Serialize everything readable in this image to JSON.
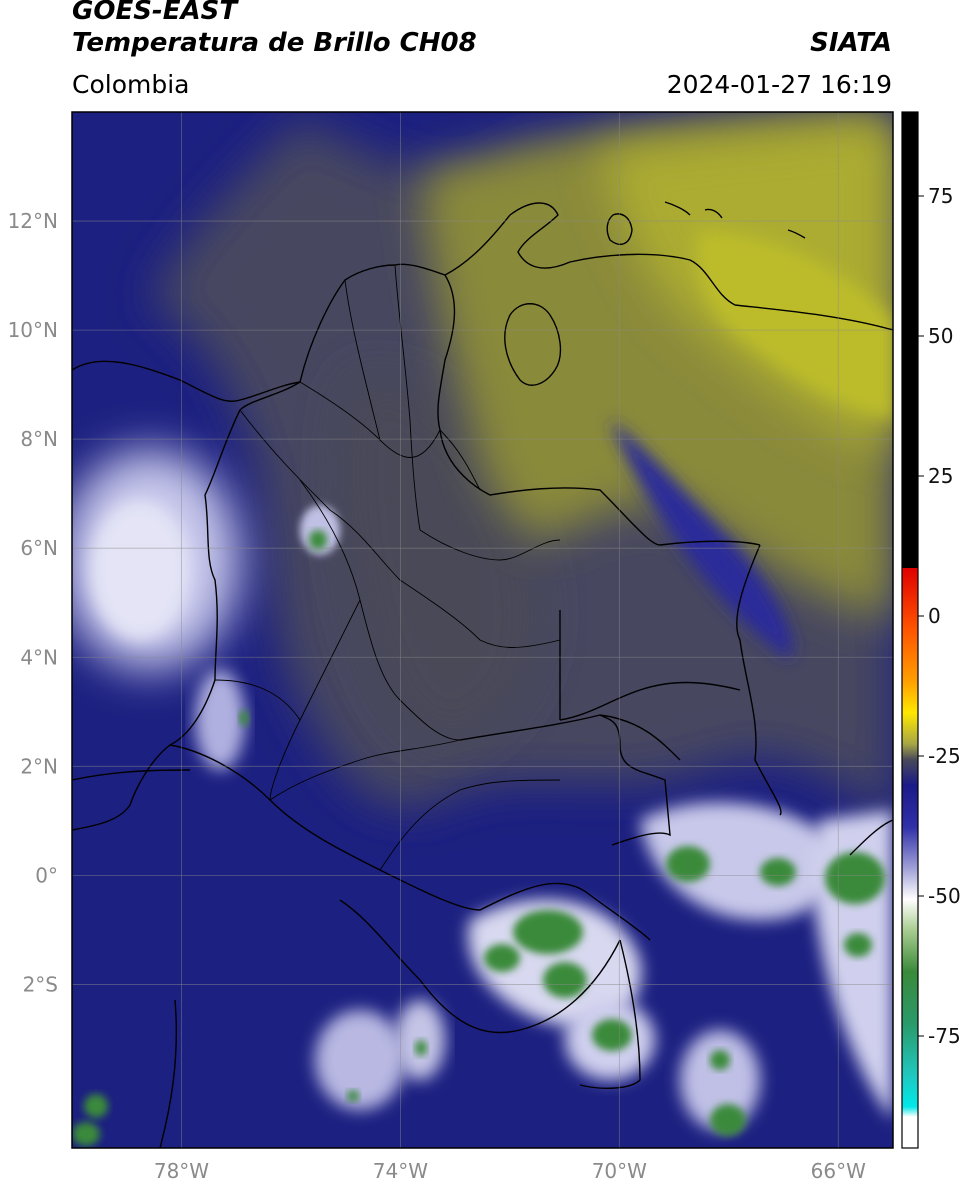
{
  "header": {
    "satellite": "GOES-EAST",
    "product": "Temperatura de Brillo CH08",
    "organization": "SIATA",
    "region": "Colombia",
    "datetime": "2024-01-27 16:19"
  },
  "map": {
    "lon_range": [
      -80,
      -65
    ],
    "lat_range": [
      -5,
      14
    ],
    "lon_ticks": [
      {
        "value": -78,
        "label": "78°W"
      },
      {
        "value": -74,
        "label": "74°W"
      },
      {
        "value": -70,
        "label": "70°W"
      },
      {
        "value": -66,
        "label": "66°W"
      }
    ],
    "lat_ticks": [
      {
        "value": 12,
        "label": "12°N"
      },
      {
        "value": 10,
        "label": "10°N"
      },
      {
        "value": 8,
        "label": "8°N"
      },
      {
        "value": 6,
        "label": "6°N"
      },
      {
        "value": 4,
        "label": "4°N"
      },
      {
        "value": 2,
        "label": "2°N"
      },
      {
        "value": 0,
        "label": "0°"
      },
      {
        "value": -2,
        "label": "2°S"
      }
    ]
  },
  "colorbar": {
    "range": [
      -95,
      90
    ],
    "ticks": [
      {
        "value": 75,
        "label": "75"
      },
      {
        "value": 50,
        "label": "50"
      },
      {
        "value": 25,
        "label": "25"
      },
      {
        "value": 0,
        "label": "0"
      },
      {
        "value": -25,
        "label": "-25"
      },
      {
        "value": -50,
        "label": "-50"
      },
      {
        "value": -75,
        "label": "-75"
      }
    ]
  },
  "colors": {
    "deep_blue": "#1c2080",
    "slate": "#4a4a5a",
    "olive": "#a8a830",
    "white_cloud": "#e6e6f4",
    "green_cloud": "#3a8a3a"
  }
}
